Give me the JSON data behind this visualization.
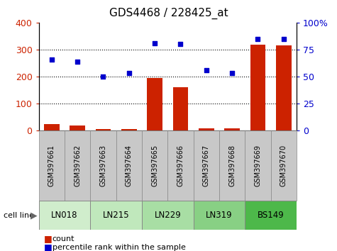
{
  "title": "GDS4468 / 228425_at",
  "samples": [
    "GSM397661",
    "GSM397662",
    "GSM397663",
    "GSM397664",
    "GSM397665",
    "GSM397666",
    "GSM397667",
    "GSM397668",
    "GSM397669",
    "GSM397670"
  ],
  "count_values": [
    25,
    18,
    5,
    6,
    195,
    160,
    7,
    7,
    318,
    315
  ],
  "percentile_values": [
    66,
    64,
    50,
    53,
    81,
    80,
    56,
    53,
    85,
    85
  ],
  "cell_lines": [
    {
      "label": "LN018",
      "start": 0,
      "end": 2,
      "color": "#d0edcc"
    },
    {
      "label": "LN215",
      "start": 2,
      "end": 4,
      "color": "#c0e8bc"
    },
    {
      "label": "LN229",
      "start": 4,
      "end": 6,
      "color": "#a8dea4"
    },
    {
      "label": "LN319",
      "start": 6,
      "end": 8,
      "color": "#88d084"
    },
    {
      "label": "BS149",
      "start": 8,
      "end": 10,
      "color": "#4db84a"
    }
  ],
  "bar_color": "#cc2200",
  "scatter_color": "#0000cc",
  "left_ylim": [
    0,
    400
  ],
  "right_ylim": [
    0,
    100
  ],
  "left_yticks": [
    0,
    100,
    200,
    300,
    400
  ],
  "right_yticks": [
    0,
    25,
    50,
    75,
    100
  ],
  "right_yticklabels": [
    "0",
    "25",
    "50",
    "75",
    "100%"
  ],
  "grid_values": [
    100,
    200,
    300
  ],
  "sample_bg_color": "#c8c8c8",
  "sample_border_color": "#888888"
}
